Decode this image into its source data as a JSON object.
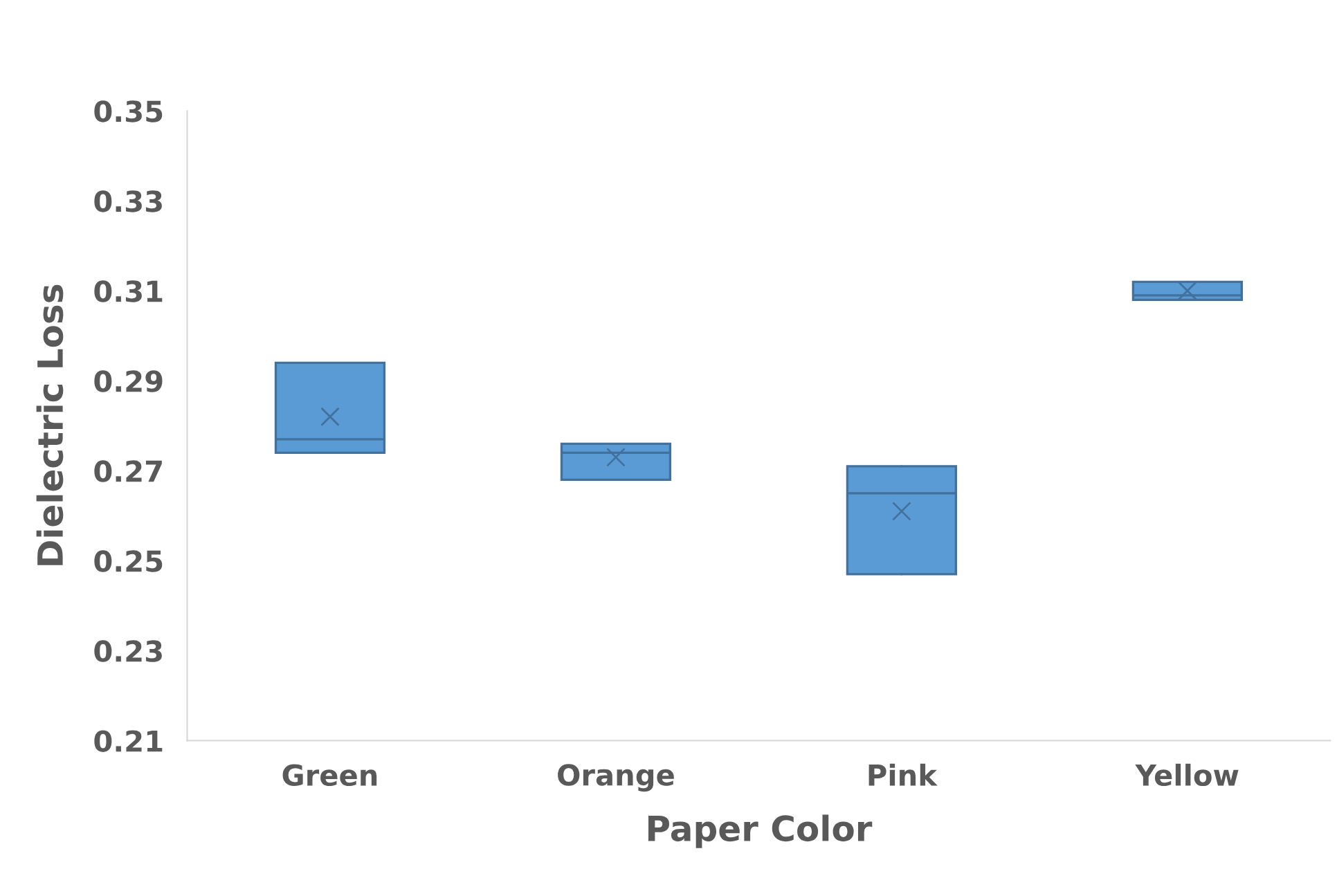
{
  "chart_data": {
    "type": "box",
    "xlabel": "Paper Color",
    "ylabel": "Dielectric Loss",
    "categories": [
      "Green",
      "Orange",
      "Pink",
      "Yellow"
    ],
    "color": "#5b9bd5",
    "boxes": [
      {
        "low": 0.274,
        "q1": 0.274,
        "median": 0.277,
        "q3": 0.294,
        "high": 0.294,
        "mean": 0.282
      },
      {
        "low": 0.268,
        "q1": 0.268,
        "median": 0.274,
        "q3": 0.276,
        "high": 0.276,
        "mean": 0.273
      },
      {
        "low": 0.247,
        "q1": 0.247,
        "median": 0.265,
        "q3": 0.271,
        "high": 0.271,
        "mean": 0.261
      },
      {
        "low": 0.308,
        "q1": 0.308,
        "median": 0.309,
        "q3": 0.312,
        "high": 0.312,
        "mean": 0.31
      }
    ],
    "ylim": [
      0.21,
      0.35
    ],
    "yticks": [
      {
        "value": 0.21,
        "label": "0.21"
      },
      {
        "value": 0.23,
        "label": "0.23"
      },
      {
        "value": 0.25,
        "label": "0.25"
      },
      {
        "value": 0.27,
        "label": "0.27"
      },
      {
        "value": 0.29,
        "label": "0.29"
      },
      {
        "value": 0.31,
        "label": "0.31"
      },
      {
        "value": 0.33,
        "label": "0.33"
      },
      {
        "value": 0.35,
        "label": "0.35"
      }
    ],
    "grid": false,
    "legend": false
  }
}
